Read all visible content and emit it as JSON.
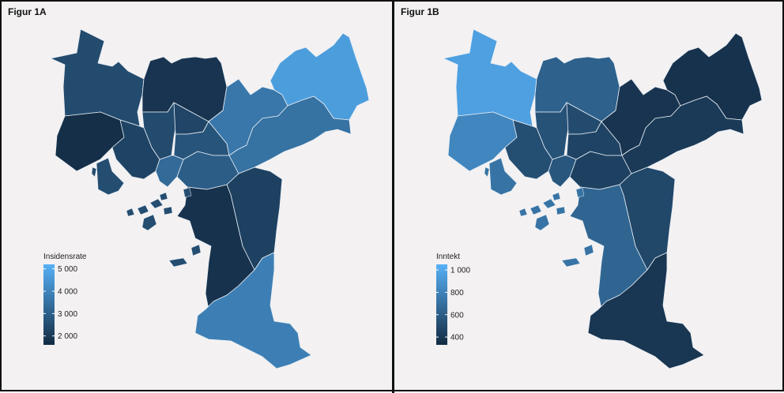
{
  "panels": [
    {
      "id": "fig1a",
      "label": "Figur 1A",
      "legend": {
        "title": "Insidensrate",
        "ticks": [
          "5 000",
          "4 000",
          "3 000",
          "2 000"
        ],
        "tick_values": [
          5000,
          4000,
          3000,
          2000
        ],
        "range": [
          1600,
          5200
        ]
      },
      "colors": {
        "low": "#132b43",
        "high": "#56b1f7"
      }
    },
    {
      "id": "fig1b",
      "label": "Figur 1B",
      "legend": {
        "title": "Inntekt",
        "ticks": [
          "1 000",
          "800",
          "600",
          "400"
        ],
        "tick_values": [
          1000,
          800,
          600,
          400
        ],
        "range": [
          330,
          1050
        ]
      },
      "colors": {
        "low": "#132b43",
        "high": "#56b1f7"
      }
    }
  ],
  "chart_data": [
    {
      "type": "choropleth",
      "title": "Figur 1A",
      "legend_title": "Insidensrate",
      "regions": [
        {
          "id": "nw",
          "value": 2450
        },
        {
          "id": "w",
          "value": 1700
        },
        {
          "id": "n",
          "value": 1850
        },
        {
          "id": "c1",
          "value": 2450
        },
        {
          "id": "c2",
          "value": 2300
        },
        {
          "id": "c3",
          "value": 2700
        },
        {
          "id": "c4",
          "value": 2950
        },
        {
          "id": "c5",
          "value": 2250
        },
        {
          "id": "c6",
          "value": 3300
        },
        {
          "id": "island",
          "value": 2500
        },
        {
          "id": "ne1",
          "value": 3650
        },
        {
          "id": "ne2",
          "value": 4650
        },
        {
          "id": "e",
          "value": 3500
        },
        {
          "id": "se",
          "value": 2200
        },
        {
          "id": "s1",
          "value": 1800
        },
        {
          "id": "s2",
          "value": 3850
        }
      ]
    },
    {
      "type": "choropleth",
      "title": "Figur 1B",
      "legend_title": "Inntekt",
      "regions": [
        {
          "id": "nw",
          "value": 960
        },
        {
          "id": "w",
          "value": 820
        },
        {
          "id": "n",
          "value": 620
        },
        {
          "id": "c1",
          "value": 540
        },
        {
          "id": "c2",
          "value": 500
        },
        {
          "id": "c3",
          "value": 460
        },
        {
          "id": "c4",
          "value": 450
        },
        {
          "id": "c5",
          "value": 520
        },
        {
          "id": "c6",
          "value": 560
        },
        {
          "id": "island",
          "value": 720
        },
        {
          "id": "ne1",
          "value": 380
        },
        {
          "id": "ne2",
          "value": 370
        },
        {
          "id": "e",
          "value": 410
        },
        {
          "id": "se",
          "value": 480
        },
        {
          "id": "s1",
          "value": 640
        },
        {
          "id": "s2",
          "value": 390
        }
      ]
    }
  ]
}
